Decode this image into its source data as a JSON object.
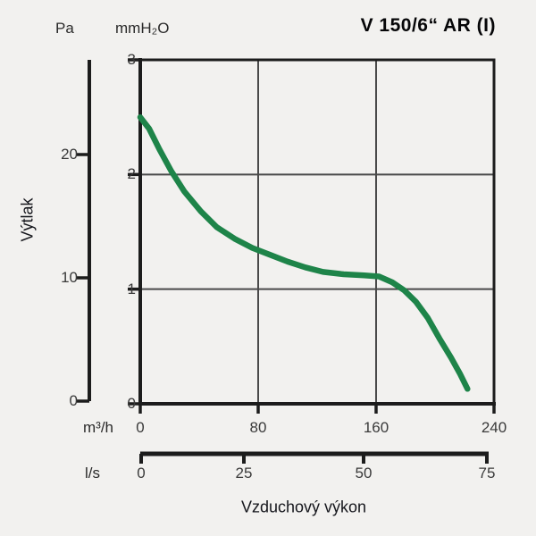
{
  "title": "V 150/6“ AR (I)",
  "header": {
    "pa_unit": "Pa",
    "mmh2o_unit": "mmH₂O"
  },
  "axis_titles": {
    "y": "Výtlak",
    "x": "Vzduchový výkon"
  },
  "units": {
    "m3h": "m³/h",
    "ls": "l/s"
  },
  "colors": {
    "curve": "#1e8449",
    "axis": "#1c1c1c",
    "grid": "#4a4a4a",
    "background": "#f2f1ef"
  },
  "chart_data": {
    "type": "line",
    "title": "V 150/6“ AR (I)",
    "xlabel": "Vzduchový výkon",
    "ylabel": "Výtlak",
    "grid": true,
    "legend": "none",
    "x_axes": [
      {
        "unit": "m³/h",
        "ticks": [
          0,
          80,
          160,
          240
        ],
        "range": [
          0,
          240
        ]
      },
      {
        "unit": "l/s",
        "ticks": [
          0,
          25,
          50,
          75
        ],
        "range": [
          0,
          75
        ]
      }
    ],
    "y_axes": [
      {
        "unit": "Pa",
        "ticks": [
          0,
          10,
          20
        ],
        "range": [
          0,
          27.7
        ]
      },
      {
        "unit": "mmH₂O",
        "ticks": [
          0,
          1,
          2,
          3
        ],
        "range": [
          0,
          3
        ]
      }
    ],
    "series": [
      {
        "name": "V 150/6“ AR (I)",
        "color": "#1e8449",
        "x_unit": "m³/h",
        "y_unit": "mmH₂O",
        "points": [
          [
            0,
            2.5
          ],
          [
            6,
            2.4
          ],
          [
            13,
            2.22
          ],
          [
            21,
            2.03
          ],
          [
            30,
            1.85
          ],
          [
            41,
            1.68
          ],
          [
            52,
            1.54
          ],
          [
            64,
            1.44
          ],
          [
            76,
            1.36
          ],
          [
            88,
            1.3
          ],
          [
            100,
            1.24
          ],
          [
            112,
            1.19
          ],
          [
            124,
            1.15
          ],
          [
            138,
            1.13
          ],
          [
            152,
            1.12
          ],
          [
            162,
            1.11
          ],
          [
            171,
            1.06
          ],
          [
            179,
            0.99
          ],
          [
            187,
            0.89
          ],
          [
            195,
            0.75
          ],
          [
            203,
            0.57
          ],
          [
            211,
            0.4
          ],
          [
            217,
            0.26
          ],
          [
            222,
            0.13
          ]
        ]
      }
    ]
  }
}
